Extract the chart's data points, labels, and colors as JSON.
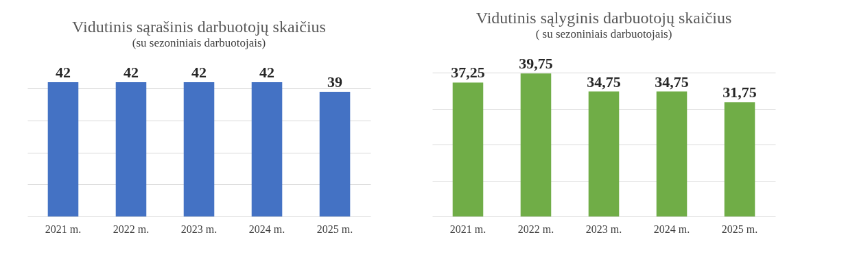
{
  "chart_data": [
    {
      "type": "bar",
      "title": "Vidutinis sąrašinis darbuotojų skaičius",
      "subtitle": "(su sezoniniais darbuotojais)",
      "categories": [
        "2021 m.",
        "2022 m.",
        "2023 m.",
        "2024 m.",
        "2025 m."
      ],
      "values": [
        42,
        42,
        42,
        42,
        39
      ],
      "color": "#4472c4",
      "data_labels": true,
      "grid": "y",
      "tick_labels": "x"
    },
    {
      "type": "bar",
      "title": "Vidutinis sąlyginis darbuotojų skaičius",
      "subtitle": "( su sezoniniais darbuotojais)",
      "categories": [
        "2021 m.",
        "2022 m.",
        "2023 m.",
        "2024 m.",
        "2025 m."
      ],
      "values": [
        37.25,
        39.75,
        34.75,
        34.75,
        31.75
      ],
      "value_labels": [
        "37,25",
        "39,75",
        "34,75",
        "34,75",
        "31,75"
      ],
      "color": "#70ad47",
      "grid": "y",
      "tick_labels": "x"
    }
  ]
}
